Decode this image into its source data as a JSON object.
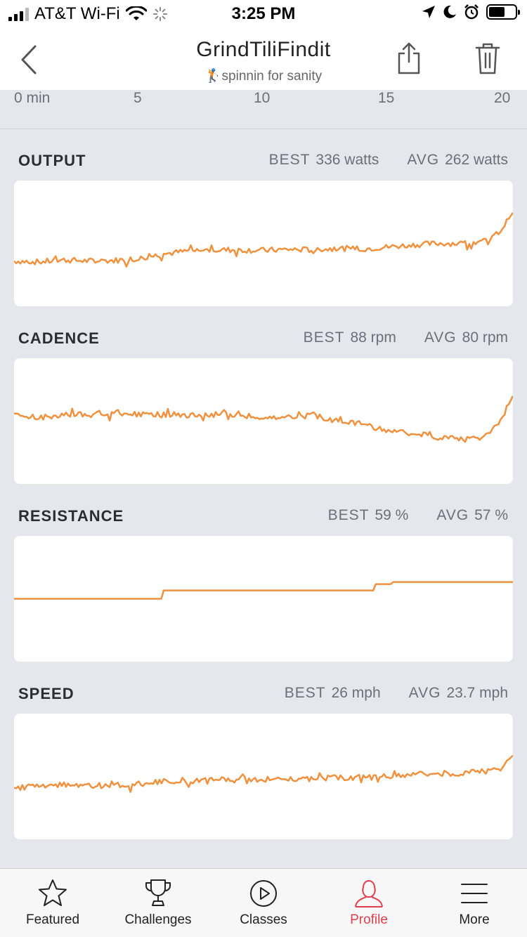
{
  "status_bar": {
    "carrier": "AT&T Wi-Fi",
    "time": "3:25 PM",
    "battery_level": 0.62
  },
  "nav": {
    "title": "GrindTiliFindit",
    "subtitle": "🏌️spinnin for sanity"
  },
  "time_axis": {
    "ticks": [
      "0 min",
      "5",
      "10",
      "15",
      "20"
    ]
  },
  "metrics": [
    {
      "name": "OUTPUT",
      "best_label": "BEST",
      "best_value": "336 watts",
      "avg_label": "AVG",
      "avg_value": "262 watts"
    },
    {
      "name": "CADENCE",
      "best_label": "BEST",
      "best_value": "88 rpm",
      "avg_label": "AVG",
      "avg_value": "80 rpm"
    },
    {
      "name": "RESISTANCE",
      "best_label": "BEST",
      "best_value": "59 %",
      "avg_label": "AVG",
      "avg_value": "57 %"
    },
    {
      "name": "SPEED",
      "best_label": "BEST",
      "best_value": "26 mph",
      "avg_label": "AVG",
      "avg_value": "23.7 mph"
    }
  ],
  "chart_data": [
    {
      "type": "line",
      "title": "OUTPUT",
      "x_range": [
        0,
        20
      ],
      "ylim": [
        150,
        400
      ],
      "line_color": "#f0913f",
      "grid": false,
      "x": [
        0,
        1,
        2,
        3,
        4,
        5,
        6,
        7,
        8,
        9,
        10,
        11,
        12,
        13,
        14,
        15,
        16,
        17,
        18,
        19,
        19.5,
        20
      ],
      "y": [
        240,
        238,
        242,
        240,
        241,
        245,
        254,
        260,
        262,
        262,
        261,
        263,
        262,
        265,
        264,
        268,
        272,
        275,
        275,
        280,
        300,
        336
      ]
    },
    {
      "type": "line",
      "title": "CADENCE",
      "x_range": [
        0,
        20
      ],
      "ylim": [
        60,
        100
      ],
      "line_color": "#f0913f",
      "grid": false,
      "x": [
        0,
        1,
        2,
        3,
        4,
        5,
        6,
        7,
        8,
        9,
        10,
        11,
        12,
        13,
        14,
        15,
        16,
        17,
        18,
        19,
        19.5,
        20
      ],
      "y": [
        82,
        81,
        82,
        82,
        83,
        82,
        82,
        82,
        82,
        82,
        81,
        81,
        82,
        80,
        79,
        77,
        76,
        75,
        74,
        76,
        80,
        88
      ]
    },
    {
      "type": "line",
      "title": "RESISTANCE",
      "x_range": [
        0,
        20
      ],
      "ylim": [
        40,
        70
      ],
      "line_color": "#f0913f",
      "grid": false,
      "step": true,
      "x": [
        0,
        5.9,
        6,
        14.4,
        14.5,
        15.1,
        15.2,
        20
      ],
      "y": [
        55,
        55,
        57,
        57,
        58.5,
        58.5,
        59,
        59
      ]
    },
    {
      "type": "line",
      "title": "SPEED",
      "x_range": [
        0,
        20
      ],
      "ylim": [
        18,
        30
      ],
      "line_color": "#f0913f",
      "grid": false,
      "x": [
        0,
        1,
        2,
        3,
        4,
        5,
        6,
        7,
        8,
        9,
        10,
        11,
        12,
        13,
        14,
        15,
        16,
        17,
        18,
        19,
        19.5,
        20
      ],
      "y": [
        23.1,
        23.0,
        23.2,
        23.1,
        23.2,
        23.3,
        23.5,
        23.6,
        23.7,
        23.7,
        23.7,
        23.8,
        23.8,
        23.9,
        23.9,
        24.0,
        24.2,
        24.3,
        24.3,
        24.5,
        24.9,
        26
      ]
    }
  ],
  "tabs": [
    {
      "label": "Featured",
      "icon": "star-icon"
    },
    {
      "label": "Challenges",
      "icon": "trophy-icon"
    },
    {
      "label": "Classes",
      "icon": "play-circle-icon"
    },
    {
      "label": "Profile",
      "icon": "person-icon",
      "active": true
    },
    {
      "label": "More",
      "icon": "menu-icon"
    }
  ],
  "colors": {
    "accent": "#e0404e",
    "line": "#f0913f",
    "background": "#e6e7ec"
  }
}
